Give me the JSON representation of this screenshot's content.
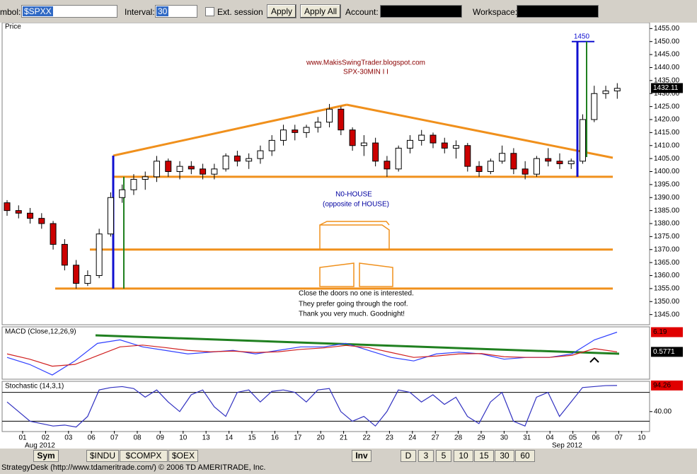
{
  "toolbar": {
    "symbol_label": "mbol:",
    "symbol": "$SPXX",
    "interval_label": "Interval:",
    "interval": "30",
    "ext_session": "Ext. session",
    "apply": "Apply",
    "apply_all": "Apply All",
    "account_label": "Account:",
    "workspace_label": "Workspace:"
  },
  "chart_data": [
    {
      "type": "candlestick",
      "title": "Price",
      "ylim": [
        1343,
        1457
      ],
      "yticks": [
        {
          "value": 1345,
          "label": "1345.00"
        },
        {
          "value": 1350,
          "label": "1350.00"
        },
        {
          "value": 1355,
          "label": "1355.00"
        },
        {
          "value": 1360,
          "label": "1360.00"
        },
        {
          "value": 1365,
          "label": "1365.00"
        },
        {
          "value": 1370,
          "label": "1370.00"
        },
        {
          "value": 1375,
          "label": "1375.00"
        },
        {
          "value": 1380,
          "label": "1380.00"
        },
        {
          "value": 1385,
          "label": "1385.00"
        },
        {
          "value": 1390,
          "label": "1390.00"
        },
        {
          "value": 1395,
          "label": "1395.00"
        },
        {
          "value": 1400,
          "label": "1400.00"
        },
        {
          "value": 1405,
          "label": "1405.00"
        },
        {
          "value": 1410,
          "label": "1410.00"
        },
        {
          "value": 1415,
          "label": "1415.00"
        },
        {
          "value": 1420,
          "label": "1420.00"
        },
        {
          "value": 1425,
          "label": "1425.00"
        },
        {
          "value": 1430,
          "label": "1430.00"
        },
        {
          "value": 1435,
          "label": "1435.00"
        },
        {
          "value": 1440,
          "label": "1440.00"
        },
        {
          "value": 1445,
          "label": "1445.00"
        },
        {
          "value": 1450,
          "label": "1450.00"
        },
        {
          "value": 1455,
          "label": "1455.00"
        }
      ],
      "up_color": "#ffffff",
      "down_color": "#cc0000",
      "candles": [
        [
          1388,
          1389,
          1383,
          1385
        ],
        [
          1385,
          1387,
          1382,
          1384
        ],
        [
          1384,
          1386,
          1380,
          1382
        ],
        [
          1382,
          1384,
          1378,
          1380
        ],
        [
          1380,
          1381,
          1370,
          1372
        ],
        [
          1372,
          1374,
          1362,
          1364
        ],
        [
          1364,
          1366,
          1355,
          1357
        ],
        [
          1357,
          1362,
          1356,
          1360
        ],
        [
          1360,
          1378,
          1359,
          1376
        ],
        [
          1376,
          1392,
          1375,
          1390
        ],
        [
          1390,
          1395,
          1388,
          1393
        ],
        [
          1393,
          1399,
          1391,
          1397
        ],
        [
          1397,
          1400,
          1393,
          1398
        ],
        [
          1398,
          1406,
          1396,
          1404
        ],
        [
          1404,
          1405,
          1398,
          1400
        ],
        [
          1400,
          1404,
          1397,
          1402
        ],
        [
          1402,
          1404,
          1399,
          1401
        ],
        [
          1401,
          1403,
          1397,
          1399
        ],
        [
          1399,
          1403,
          1397,
          1401
        ],
        [
          1401,
          1407,
          1400,
          1406
        ],
        [
          1406,
          1408,
          1402,
          1404
        ],
        [
          1404,
          1407,
          1401,
          1405
        ],
        [
          1405,
          1410,
          1403,
          1408
        ],
        [
          1408,
          1414,
          1406,
          1412
        ],
        [
          1412,
          1418,
          1410,
          1416
        ],
        [
          1416,
          1418,
          1412,
          1415
        ],
        [
          1415,
          1418,
          1413,
          1417
        ],
        [
          1417,
          1421,
          1415,
          1419
        ],
        [
          1419,
          1426,
          1417,
          1424
        ],
        [
          1424,
          1425,
          1414,
          1416
        ],
        [
          1416,
          1417,
          1408,
          1410
        ],
        [
          1410,
          1414,
          1406,
          1411
        ],
        [
          1411,
          1413,
          1402,
          1404
        ],
        [
          1404,
          1406,
          1398,
          1401
        ],
        [
          1401,
          1410,
          1400,
          1409
        ],
        [
          1409,
          1414,
          1407,
          1412
        ],
        [
          1412,
          1416,
          1410,
          1414
        ],
        [
          1414,
          1415,
          1409,
          1411
        ],
        [
          1411,
          1413,
          1407,
          1409
        ],
        [
          1409,
          1412,
          1405,
          1410
        ],
        [
          1410,
          1411,
          1400,
          1402
        ],
        [
          1402,
          1404,
          1398,
          1400
        ],
        [
          1400,
          1405,
          1399,
          1404
        ],
        [
          1404,
          1410,
          1403,
          1407
        ],
        [
          1407,
          1409,
          1399,
          1401
        ],
        [
          1401,
          1404,
          1397,
          1399
        ],
        [
          1399,
          1406,
          1398,
          1405
        ],
        [
          1405,
          1409,
          1402,
          1404
        ],
        [
          1404,
          1407,
          1401,
          1403
        ],
        [
          1403,
          1405,
          1401,
          1404
        ],
        [
          1404,
          1422,
          1403,
          1420
        ],
        [
          1420,
          1433,
          1419,
          1430
        ],
        [
          1430,
          1433,
          1428,
          1431
        ],
        [
          1431,
          1434,
          1428,
          1432
        ]
      ],
      "last_price": 1432.11,
      "levels": [
        1398,
        1370,
        1355
      ],
      "target": 1450,
      "annotations": {
        "url": "www.MakisSwingTrader.blogspot.com",
        "subtitle": "SPX-30MIN I I",
        "pattern": "N0-HOUSE",
        "pattern_note": "(opposite of HOUSE)",
        "note1": "Close the doors no one is interested.",
        "note2": "They prefer going through the roof.",
        "note3": "Thank you very much. Goodnight!"
      }
    },
    {
      "type": "line",
      "title": "MACD (Close,12,26,9)",
      "ylim": [
        -7,
        7.5
      ],
      "series": [
        {
          "color": "#3040ff",
          "values": [
            -1,
            -3,
            -6,
            -2,
            3,
            4,
            2,
            1,
            0,
            0.5,
            1,
            0,
            1,
            2,
            2,
            3,
            1,
            -1,
            -2,
            0,
            0.5,
            0,
            -1.5,
            -1,
            -1,
            0,
            4,
            6.19
          ]
        },
        {
          "color": "#d02020",
          "values": [
            0,
            -1.5,
            -3.5,
            -3,
            -0.5,
            2,
            2.5,
            1.8,
            1,
            0.6,
            0.8,
            0.4,
            0.6,
            1.3,
            1.7,
            2.4,
            1.8,
            0.4,
            -1,
            -0.6,
            0,
            0.1,
            -0.8,
            -1,
            -1,
            -0.4,
            1.5,
            0.5771
          ]
        }
      ]
    },
    {
      "type": "line",
      "title": "Stochastic (14,3,1)",
      "ylim": [
        0,
        100
      ],
      "yticks": [
        {
          "value": 40,
          "label": "40.00"
        }
      ],
      "levels": [
        80,
        20
      ],
      "series": [
        {
          "color": "#3030c0",
          "values": [
            60,
            40,
            20,
            15,
            10,
            12,
            8,
            30,
            85,
            90,
            92,
            88,
            70,
            85,
            60,
            40,
            75,
            85,
            50,
            30,
            80,
            85,
            60,
            82,
            85,
            80,
            60,
            85,
            88,
            40,
            20,
            30,
            10,
            40,
            85,
            80,
            60,
            75,
            55,
            70,
            30,
            15,
            60,
            80,
            20,
            10,
            70,
            80,
            30,
            60,
            90,
            92,
            94,
            94.26
          ]
        }
      ]
    }
  ],
  "x_axis": {
    "dates": [
      "01",
      "02",
      "03",
      "06",
      "07",
      "08",
      "09",
      "10",
      "13",
      "14",
      "15",
      "16",
      "17",
      "20",
      "21",
      "22",
      "23",
      "24",
      "27",
      "28",
      "29",
      "30",
      "31",
      "04",
      "05",
      "06",
      "07",
      "10"
    ],
    "months": [
      "Aug 2012",
      "Sep 2012"
    ]
  },
  "tabs": {
    "sym": "Sym",
    "symbols": [
      "$INDU",
      "$COMPX",
      "$OEX"
    ],
    "inv": "Inv",
    "intervals": [
      "D",
      "3",
      "5",
      "10",
      "15",
      "30",
      "60"
    ]
  },
  "status": "StrategyDesk (http://www.tdameritrade.com/) © 2006 TD AMERITRADE, Inc."
}
